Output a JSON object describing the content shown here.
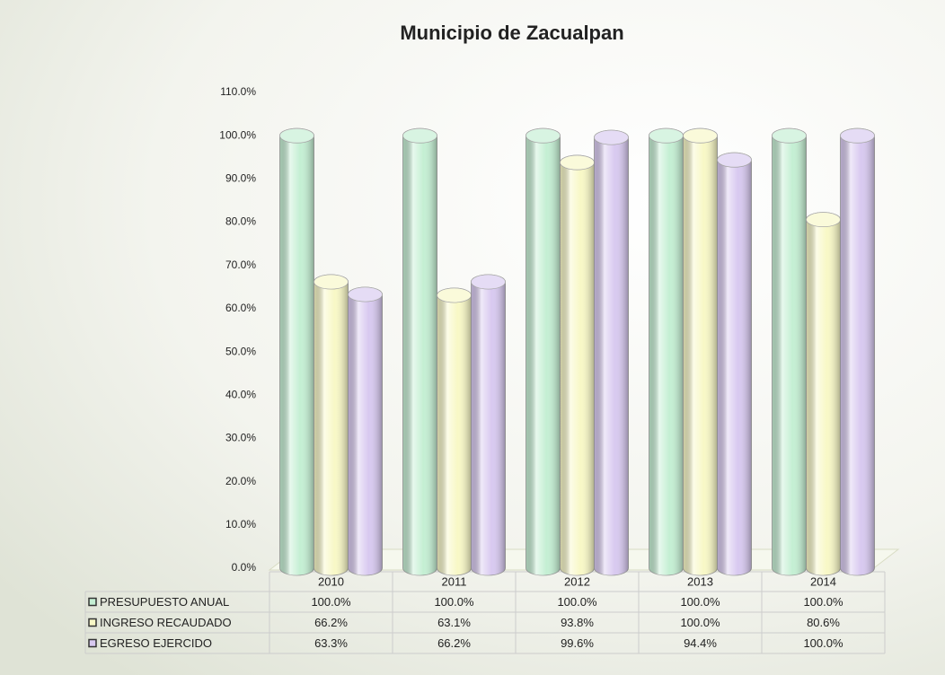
{
  "chart_data": {
    "type": "bar",
    "title": "Municipio de Zacualpan",
    "categories": [
      "2010",
      "2011",
      "2012",
      "2013",
      "2014"
    ],
    "series": [
      {
        "name": "PRESUPUESTO ANUAL",
        "color": "#c4efd3",
        "values": [
          100,
          100,
          100,
          100,
          100
        ],
        "value_labels": [
          "100.0%",
          "100.0%",
          "100.0%",
          "100.0%",
          "100.0%"
        ]
      },
      {
        "name": "INGRESO RECAUDADO",
        "color": "#f8f8c6",
        "values": [
          66.2,
          63.1,
          93.8,
          100,
          80.6
        ],
        "value_labels": [
          "66.2%",
          "63.1%",
          "93.8%",
          "100.0%",
          "80.6%"
        ]
      },
      {
        "name": "EGRESO EJERCIDO",
        "color": "#d8c9f0",
        "values": [
          63.3,
          66.2,
          99.6,
          94.4,
          100
        ],
        "value_labels": [
          "63.3%",
          "66.2%",
          "99.6%",
          "94.4%",
          "100.0%"
        ]
      }
    ],
    "ylim": [
      0,
      110
    ],
    "yticks": [
      {
        "value": 0,
        "label": "0.0%"
      },
      {
        "value": 10,
        "label": "10.0%"
      },
      {
        "value": 20,
        "label": "20.0%"
      },
      {
        "value": 30,
        "label": "30.0%"
      },
      {
        "value": 40,
        "label": "40.0%"
      },
      {
        "value": 50,
        "label": "50.0%"
      },
      {
        "value": 60,
        "label": "60.0%"
      },
      {
        "value": 70,
        "label": "70.0%"
      },
      {
        "value": 80,
        "label": "80.0%"
      },
      {
        "value": 90,
        "label": "90.0%"
      },
      {
        "value": 100,
        "label": "100.0%"
      },
      {
        "value": 110,
        "label": "110.0%"
      }
    ],
    "grid": false
  }
}
